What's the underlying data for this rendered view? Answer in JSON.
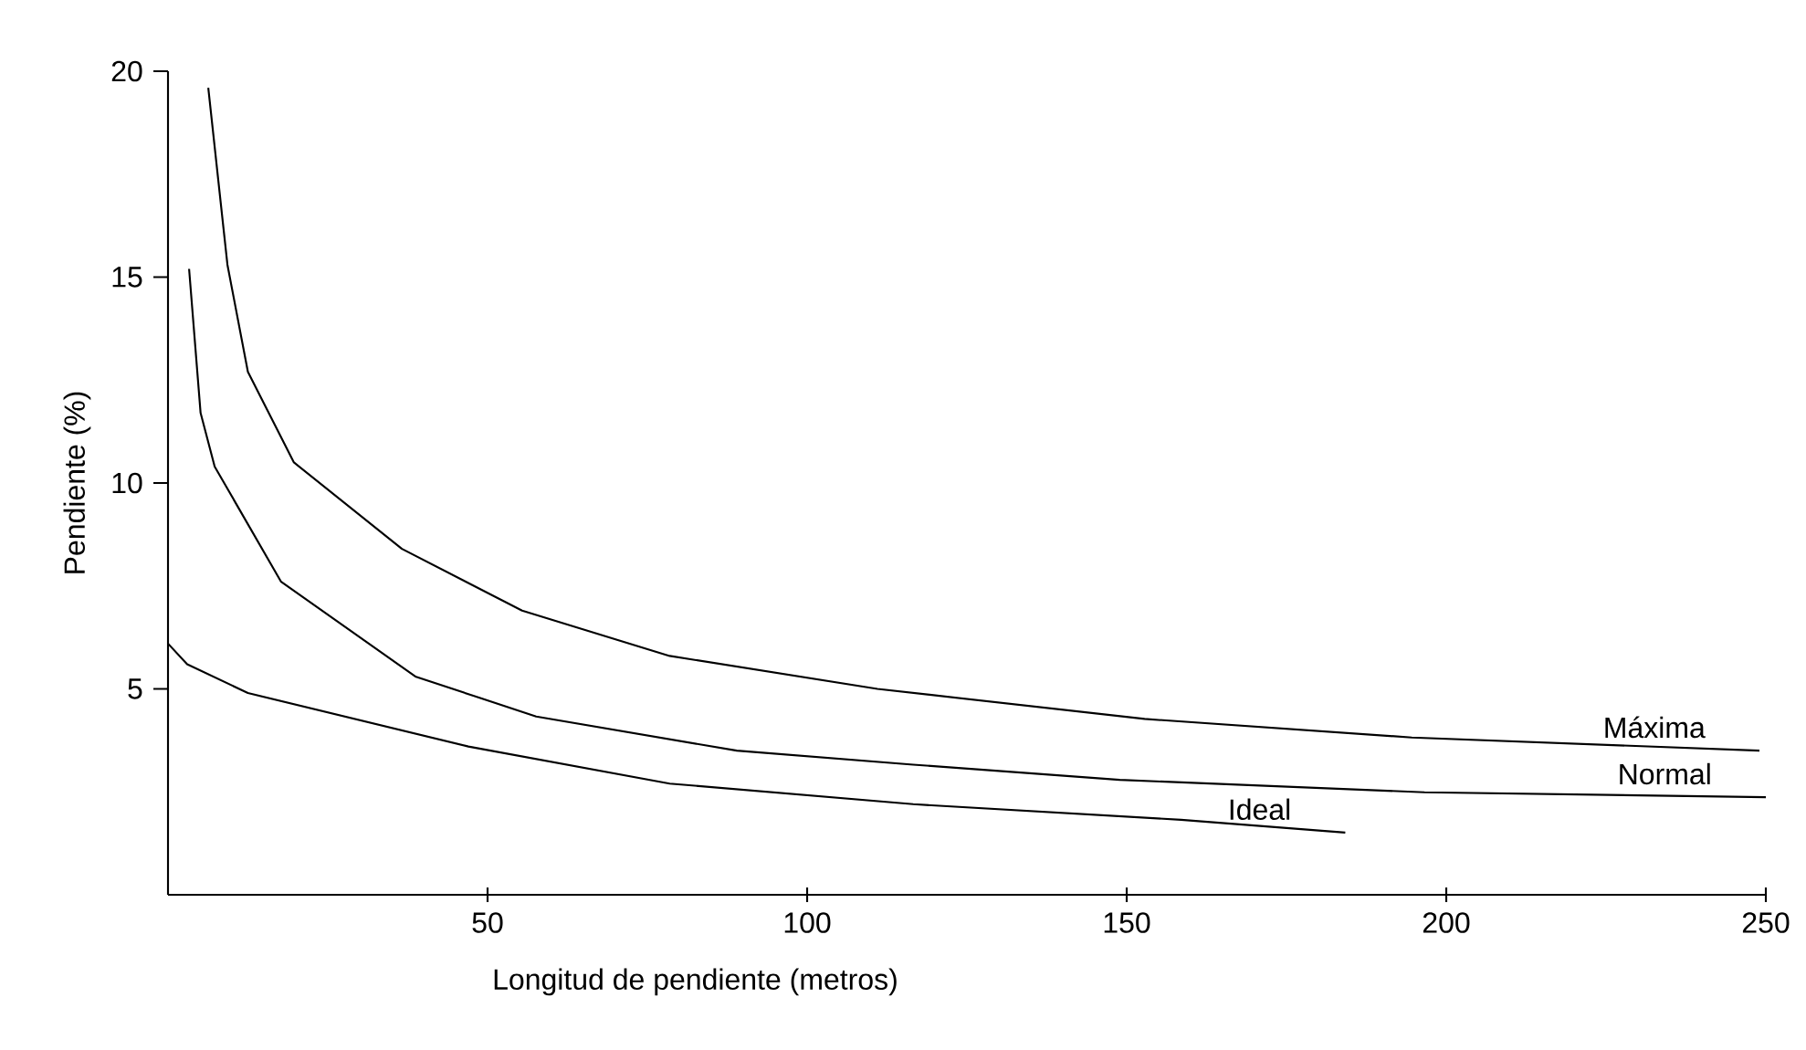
{
  "chart_data": {
    "type": "line",
    "xlabel": "Longitud de pendiente (metros)",
    "ylabel": "Pendiente (%)",
    "xlim": [
      0,
      250
    ],
    "ylim": [
      0,
      20
    ],
    "xticks": [
      50,
      100,
      150,
      200,
      250
    ],
    "yticks": [
      5,
      10,
      15,
      20
    ],
    "grid": false,
    "marker": "none",
    "line_style": "solid",
    "series": [
      {
        "color": "#000000",
        "x": [
          6.3,
          9.3,
          12.5,
          19.7,
          36.6,
          55.4,
          78.5,
          111,
          152.8,
          194.6,
          249
        ],
        "values": [
          19.6,
          15.3,
          12.7,
          10.5,
          8.4,
          6.9,
          5.8,
          5.0,
          4.27,
          3.82,
          3.5
        ]
      },
      {
        "color": "#000000",
        "x": [
          3.3,
          5.1,
          7.3,
          17.7,
          38.7,
          57.6,
          89,
          116.6,
          148.9,
          196.6,
          250
        ],
        "values": [
          15.2,
          11.7,
          10.4,
          7.6,
          5.3,
          4.33,
          3.5,
          3.16,
          2.79,
          2.49,
          2.37
        ]
      },
      {
        "color": "#000000",
        "x": [
          0,
          3,
          12.5,
          47,
          78.5,
          116.6,
          158.5,
          184.2
        ],
        "values": [
          6.1,
          5.6,
          4.9,
          3.6,
          2.7,
          2.2,
          1.82,
          1.51
        ]
      }
    ],
    "annotations": [
      "Máxima",
      "Normal",
      "Ideal"
    ]
  }
}
